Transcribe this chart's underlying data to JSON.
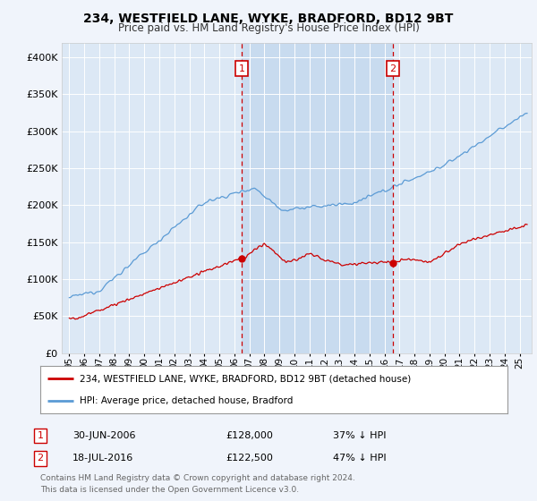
{
  "title": "234, WESTFIELD LANE, WYKE, BRADFORD, BD12 9BT",
  "subtitle": "Price paid vs. HM Land Registry's House Price Index (HPI)",
  "ylim": [
    0,
    420000
  ],
  "yticks": [
    0,
    50000,
    100000,
    150000,
    200000,
    250000,
    300000,
    350000,
    400000
  ],
  "ytick_labels": [
    "£0",
    "£50K",
    "£100K",
    "£150K",
    "£200K",
    "£250K",
    "£300K",
    "£350K",
    "£400K"
  ],
  "fig_bg": "#f0f4fb",
  "plot_bg": "#dce8f5",
  "shade_color": "#c5d9ee",
  "legend_entries": [
    "234, WESTFIELD LANE, WYKE, BRADFORD, BD12 9BT (detached house)",
    "HPI: Average price, detached house, Bradford"
  ],
  "sale1_date": "30-JUN-2006",
  "sale1_price": 128000,
  "sale1_pct": "37% ↓ HPI",
  "sale2_date": "18-JUL-2016",
  "sale2_price": 122500,
  "sale2_pct": "47% ↓ HPI",
  "footer": "Contains HM Land Registry data © Crown copyright and database right 2024.\nThis data is licensed under the Open Government Licence v3.0.",
  "line1_color": "#cc0000",
  "line2_color": "#5b9bd5",
  "vline_color": "#cc0000",
  "vline_x1": 2006.5,
  "vline_x2": 2016.55,
  "sale1_y": 128000,
  "sale2_y": 122500,
  "xmin": 1994.5,
  "xmax": 2025.8
}
